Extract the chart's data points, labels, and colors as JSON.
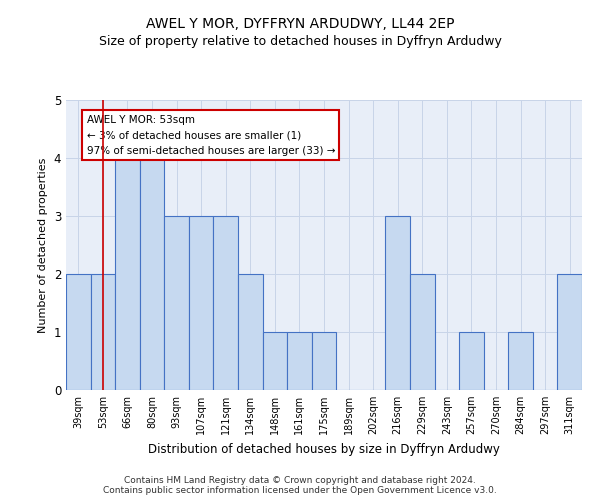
{
  "title": "AWEL Y MOR, DYFFRYN ARDUDWY, LL44 2EP",
  "subtitle": "Size of property relative to detached houses in Dyffryn Ardudwy",
  "xlabel": "Distribution of detached houses by size in Dyffryn Ardudwy",
  "ylabel": "Number of detached properties",
  "categories": [
    "39sqm",
    "53sqm",
    "66sqm",
    "80sqm",
    "93sqm",
    "107sqm",
    "121sqm",
    "134sqm",
    "148sqm",
    "161sqm",
    "175sqm",
    "189sqm",
    "202sqm",
    "216sqm",
    "229sqm",
    "243sqm",
    "257sqm",
    "270sqm",
    "284sqm",
    "297sqm",
    "311sqm"
  ],
  "values": [
    2,
    2,
    4,
    4,
    3,
    3,
    3,
    2,
    1,
    1,
    1,
    0,
    0,
    3,
    2,
    0,
    1,
    0,
    1,
    0,
    2
  ],
  "bar_color": "#c6d9f0",
  "bar_edge_color": "#4472c4",
  "highlight_index": 1,
  "highlight_line_color": "#cc0000",
  "ylim": [
    0,
    5
  ],
  "yticks": [
    0,
    1,
    2,
    3,
    4,
    5
  ],
  "annotation_title": "AWEL Y MOR: 53sqm",
  "annotation_line1": "← 3% of detached houses are smaller (1)",
  "annotation_line2": "97% of semi-detached houses are larger (33) →",
  "annotation_box_color": "#ffffff",
  "annotation_box_edge_color": "#cc0000",
  "footer_line1": "Contains HM Land Registry data © Crown copyright and database right 2024.",
  "footer_line2": "Contains public sector information licensed under the Open Government Licence v3.0.",
  "grid_color": "#c8d4e8",
  "background_color": "#e8eef8",
  "title_fontsize": 10,
  "subtitle_fontsize": 9
}
